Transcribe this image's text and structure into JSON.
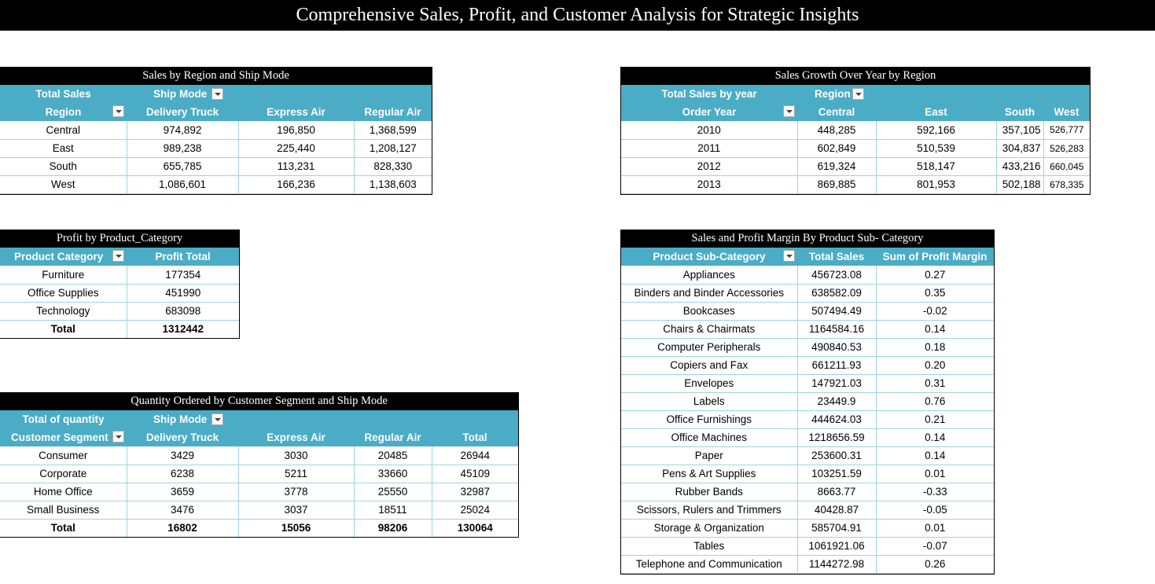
{
  "title": "Comprehensive Sales, Profit, and Customer Analysis for Strategic Insights",
  "region_ship": {
    "title": "Sales by Region and Ship Mode",
    "corner_label": "Total Sales",
    "col_field": "Ship Mode",
    "row_field": "Region",
    "columns": [
      "Delivery Truck",
      "Express Air",
      "Regular Air"
    ],
    "rows": [
      {
        "label": "Central",
        "values": [
          "974,892",
          "196,850",
          "1,368,599"
        ]
      },
      {
        "label": "East",
        "values": [
          "989,238",
          "225,440",
          "1,208,127"
        ]
      },
      {
        "label": "South",
        "values": [
          "655,785",
          "113,231",
          "828,330"
        ]
      },
      {
        "label": "West",
        "values": [
          "1,086,601",
          "166,236",
          "1,138,603"
        ]
      }
    ]
  },
  "growth": {
    "title": "Sales Growth Over Year by Region",
    "corner_label": "Total Sales by year",
    "col_field": "Region",
    "row_field": "Order Year",
    "columns": [
      "Central",
      "East",
      "South",
      "West"
    ],
    "rows": [
      {
        "label": "2010",
        "values": [
          "448,285",
          "592,166",
          "357,105",
          "526,777"
        ]
      },
      {
        "label": "2011",
        "values": [
          "602,849",
          "510,539",
          "304,837",
          "526,283"
        ]
      },
      {
        "label": "2012",
        "values": [
          "619,324",
          "518,147",
          "433,216",
          "660,045"
        ]
      },
      {
        "label": "2013",
        "values": [
          "869,885",
          "801,953",
          "502,188",
          "678,335"
        ]
      }
    ]
  },
  "profit_category": {
    "title": "Profit by Product_Category",
    "row_field": "Product Category",
    "value_field": "Profit Total",
    "rows": [
      {
        "label": "Furniture",
        "value": "177354"
      },
      {
        "label": "Office Supplies",
        "value": "451990"
      },
      {
        "label": "Technology",
        "value": "683098"
      }
    ],
    "total_label": "Total",
    "total_value": "1312442"
  },
  "subcategory": {
    "title": "Sales and Profit Margin By Product Sub- Category",
    "row_field": "Product Sub-Category",
    "columns": [
      "Total Sales",
      "Sum of Profit Margin"
    ],
    "rows": [
      {
        "label": "Appliances",
        "values": [
          "456723.08",
          "0.27"
        ]
      },
      {
        "label": "Binders and Binder Accessories",
        "values": [
          "638582.09",
          "0.35"
        ]
      },
      {
        "label": "Bookcases",
        "values": [
          "507494.49",
          "-0.02"
        ]
      },
      {
        "label": "Chairs & Chairmats",
        "values": [
          "1164584.16",
          "0.14"
        ]
      },
      {
        "label": "Computer Peripherals",
        "values": [
          "490840.53",
          "0.18"
        ]
      },
      {
        "label": "Copiers and Fax",
        "values": [
          "661211.93",
          "0.20"
        ]
      },
      {
        "label": "Envelopes",
        "values": [
          "147921.03",
          "0.31"
        ]
      },
      {
        "label": "Labels",
        "values": [
          "23449.9",
          "0.76"
        ]
      },
      {
        "label": "Office Furnishings",
        "values": [
          "444624.03",
          "0.21"
        ]
      },
      {
        "label": "Office Machines",
        "values": [
          "1218656.59",
          "0.14"
        ]
      },
      {
        "label": "Paper",
        "values": [
          "253600.31",
          "0.14"
        ]
      },
      {
        "label": "Pens & Art Supplies",
        "values": [
          "103251.59",
          "0.01"
        ]
      },
      {
        "label": "Rubber Bands",
        "values": [
          "8663.77",
          "-0.33"
        ]
      },
      {
        "label": "Scissors, Rulers and Trimmers",
        "values": [
          "40428.87",
          "-0.05"
        ]
      },
      {
        "label": "Storage & Organization",
        "values": [
          "585704.91",
          "0.01"
        ]
      },
      {
        "label": "Tables",
        "values": [
          "1061921.06",
          "-0.07"
        ]
      },
      {
        "label": "Telephone and Communication",
        "values": [
          "1144272.98",
          "0.26"
        ]
      }
    ]
  },
  "quantity": {
    "title": "Quantity Ordered by Customer Segment and Ship Mode",
    "corner_label": "Total of quantity",
    "col_field": "Ship Mode",
    "row_field": "Customer Segment",
    "columns": [
      "Delivery Truck",
      "Express Air",
      "Regular Air",
      "Total"
    ],
    "rows": [
      {
        "label": "Consumer",
        "values": [
          "3429",
          "3030",
          "20485",
          "26944"
        ]
      },
      {
        "label": "Corporate",
        "values": [
          "6238",
          "5211",
          "33660",
          "45109"
        ]
      },
      {
        "label": "Home Office",
        "values": [
          "3659",
          "3778",
          "25550",
          "32987"
        ]
      },
      {
        "label": "Small Business",
        "values": [
          "3476",
          "3037",
          "18511",
          "25024"
        ]
      }
    ],
    "total_label": "Total",
    "total_values": [
      "16802",
      "15056",
      "98206",
      "130064"
    ]
  },
  "icons": {
    "filter_dropdown": "filter-dropdown-icon"
  },
  "colors": {
    "header_bg": "#4bacc6",
    "title_bg": "#000000",
    "row_border": "#9dd4e2"
  }
}
